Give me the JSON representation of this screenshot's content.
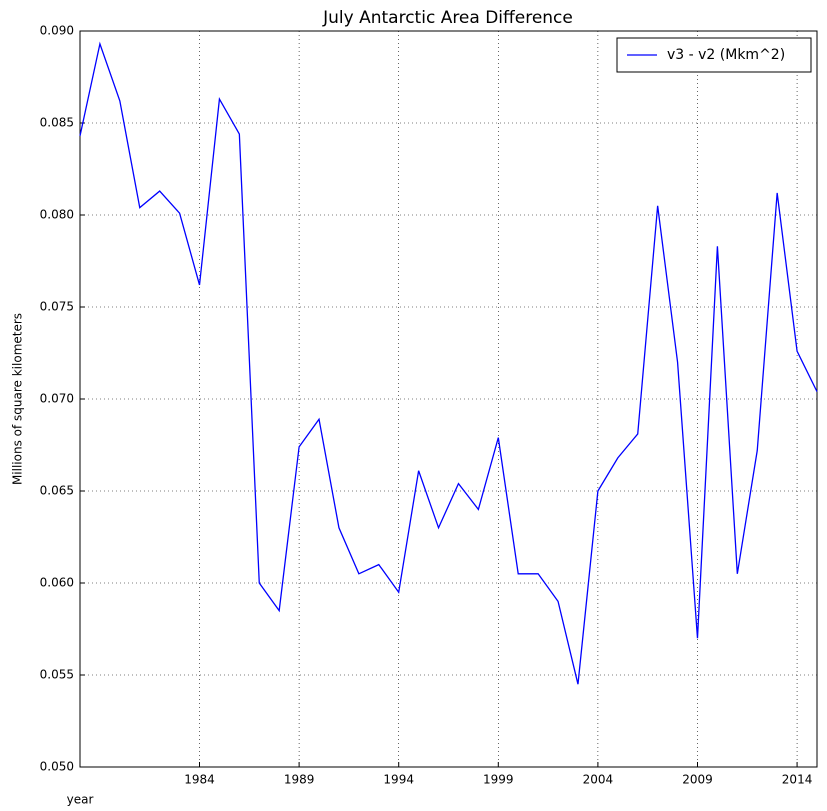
{
  "chart_data": {
    "type": "line",
    "title": "July Antarctic Area Difference",
    "x_label": "year",
    "y_label": "Millions of square kilometers",
    "x": [
      1978,
      1979,
      1980,
      1981,
      1982,
      1983,
      1984,
      1985,
      1986,
      1987,
      1988,
      1989,
      1990,
      1991,
      1992,
      1993,
      1994,
      1995,
      1996,
      1997,
      1998,
      1999,
      2000,
      2001,
      2002,
      2003,
      2004,
      2005,
      2006,
      2007,
      2008,
      2009,
      2010,
      2011,
      2012,
      2013,
      2014,
      2015
    ],
    "series": [
      {
        "name": "v3 - v2 (Mkm^2)",
        "color": "#0000ff",
        "values": [
          0.0843,
          0.0893,
          0.0862,
          0.0804,
          0.0813,
          0.0801,
          0.0762,
          0.0863,
          0.0844,
          0.06,
          0.0585,
          0.0674,
          0.0689,
          0.063,
          0.0605,
          0.061,
          0.0595,
          0.0661,
          0.063,
          0.0654,
          0.064,
          0.0679,
          0.0605,
          0.0605,
          0.059,
          0.0545,
          0.065,
          0.0668,
          0.0681,
          0.0805,
          0.072,
          0.057,
          0.0783,
          0.0605,
          0.0672,
          0.0812,
          0.0726,
          0.0704
        ]
      }
    ],
    "xlim": [
      1978,
      2015
    ],
    "xticks": [
      1984,
      1989,
      1994,
      1999,
      2004,
      2009,
      2014
    ],
    "ylim": [
      0.05,
      0.09
    ],
    "yticks": [
      {
        "value": 0.05,
        "label": "0.050"
      },
      {
        "value": 0.055,
        "label": "0.055"
      },
      {
        "value": 0.06,
        "label": "0.060"
      },
      {
        "value": 0.065,
        "label": "0.065"
      },
      {
        "value": 0.07,
        "label": "0.070"
      },
      {
        "value": 0.075,
        "label": "0.075"
      },
      {
        "value": 0.08,
        "label": "0.080"
      },
      {
        "value": 0.085,
        "label": "0.085"
      },
      {
        "value": 0.09,
        "label": "0.090"
      }
    ],
    "grid": true,
    "legend": "upper right"
  }
}
